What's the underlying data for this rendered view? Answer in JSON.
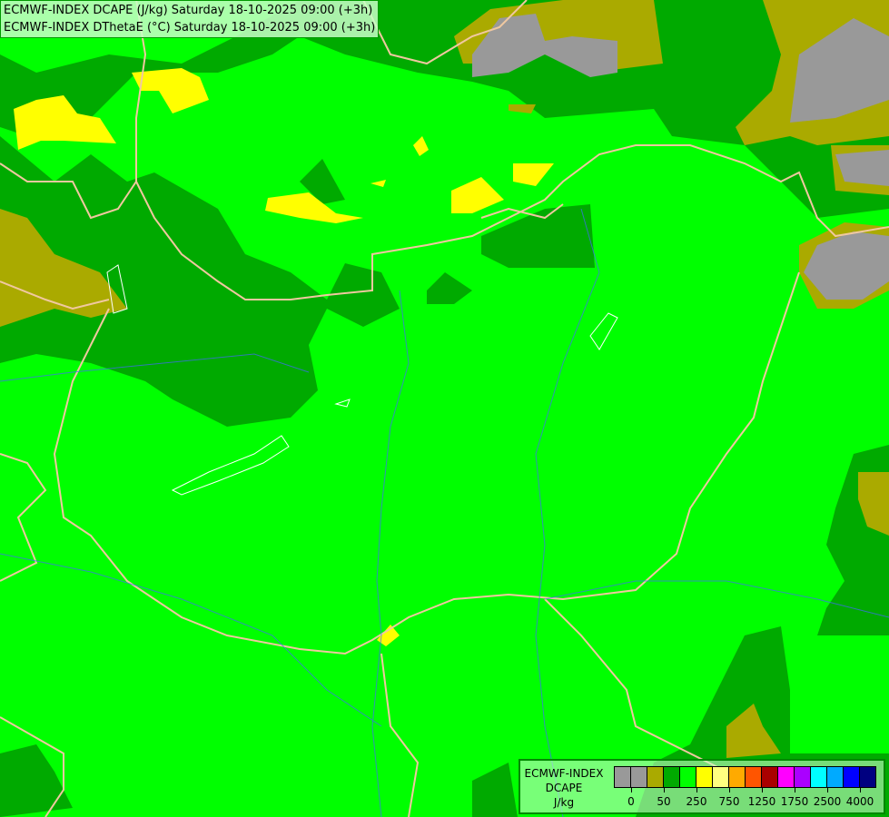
{
  "header": {
    "line1": "ECMWF-INDEX DCAPE (J/kg) Saturday 18-10-2025 09:00 (+3h)",
    "line2": "ECMWF-INDEX DThetaE (°C) Saturday 18-10-2025 09:00 (+3h)"
  },
  "legend": {
    "title1": "ECMWF-INDEX",
    "title2": "DCAPE",
    "unit": "J/kg",
    "colors": [
      "#999999",
      "#999999",
      "#aaaa00",
      "#00aa00",
      "#00ff00",
      "#ffff00",
      "#ffff80",
      "#ffaa00",
      "#ff5500",
      "#aa0000",
      "#ff00ff",
      "#aa00ff",
      "#00ffff",
      "#00aaff",
      "#0000ff",
      "#000080"
    ],
    "ticks": [
      "0",
      "50",
      "250",
      "750",
      "1250",
      "1750",
      "2500",
      "4000"
    ]
  },
  "map_colors": {
    "low": "#00ff00",
    "mid": "#00aa00",
    "olive": "#aaaa00",
    "gray": "#999999",
    "yellow": "#ffff00",
    "border": "#f0c8a0",
    "river": "#4466ff"
  }
}
